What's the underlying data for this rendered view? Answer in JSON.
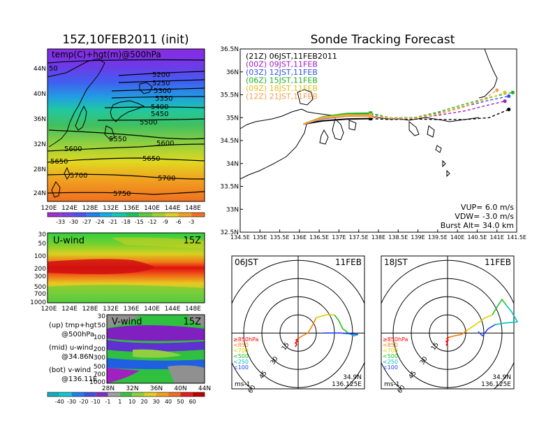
{
  "titles": {
    "left": "15Z,10FEB2011 (init)",
    "right": "Sonde Tracking Forecast"
  },
  "panel_500": {
    "label": "temp(C)+hgt(m)@500hPa",
    "lat_ticks": [
      "44N",
      "40N",
      "36N",
      "32N",
      "28N",
      "24N"
    ],
    "lon_ticks": [
      "120E",
      "124E",
      "128E",
      "132E",
      "136E",
      "140E",
      "144E",
      "148E"
    ],
    "contour_labels": [
      "50",
      "5200",
      "5250",
      "5300",
      "5350",
      "5400",
      "5450",
      "5500",
      "5550",
      "5600",
      "5600",
      "5650",
      "5650",
      "5700",
      "5700",
      "5750"
    ],
    "colorbar": [
      "-33",
      "-30",
      "-27",
      "-24",
      "-21",
      "-18",
      "-15",
      "-12",
      "-9",
      "-6",
      "-3"
    ]
  },
  "panel_u": {
    "title": "U-wind",
    "time": "15Z",
    "p_ticks": [
      "30",
      "50",
      "100",
      "200",
      "300",
      "500",
      "700",
      "1000"
    ],
    "lon_ticks": [
      "120E",
      "124E",
      "128E",
      "132E",
      "136E",
      "140E",
      "144E",
      "148E"
    ]
  },
  "panel_v": {
    "title": "V-wind",
    "time": "15Z",
    "p_ticks": [
      "30",
      "50",
      "100",
      "200",
      "300",
      "500",
      "700",
      "1000"
    ],
    "lat_ticks": [
      "28N",
      "32N",
      "36N",
      "40N",
      "44N"
    ],
    "colorbar": [
      "-40",
      "-30",
      "-20",
      "-10",
      "-1",
      "1",
      "10",
      "20",
      "30",
      "40",
      "50",
      "60"
    ]
  },
  "legend_text": {
    "up_1": "(up) tmp+hgt",
    "up_2": "@500hPa",
    "mid_1": "(mid) u-wind",
    "mid_2": "@34.86N",
    "bot_1": "(bot) v-wind",
    "bot_2": "@136.11E"
  },
  "track_map": {
    "lat_ticks": [
      "36.5N",
      "36N",
      "35.5N",
      "35N",
      "34.5N",
      "34N",
      "33.5N",
      "33N",
      "32.5N"
    ],
    "lon_ticks": [
      "134.5E",
      "135E",
      "135.5E",
      "136E",
      "136.5E",
      "137E",
      "137.5E",
      "138E",
      "138.5E",
      "139E",
      "139.5E",
      "140E",
      "140.5E",
      "141E",
      "141.5E"
    ],
    "legend": [
      {
        "label": "(21Z)  06JST,11FEB2011",
        "color": "#000000"
      },
      {
        "label": "(00Z)  09JST,11FEB",
        "color": "#a020c0"
      },
      {
        "label": "(03Z)  12JST,11FEB",
        "color": "#3050f0"
      },
      {
        "label": "(06Z)  15JST,11FEB",
        "color": "#20b020"
      },
      {
        "label": "(09Z)  18JST,11FEB",
        "color": "#e0c020"
      },
      {
        "label": "(12Z)  21JST,11FEB",
        "color": "#f0a050"
      }
    ],
    "params": {
      "vup": "VUP=  6.0  m/s",
      "vdw": "VDW= -3.0  m/s",
      "burst": "Burst Alt=  34.0  km"
    }
  },
  "hodo_left": {
    "time": "06JST",
    "date": "11FEB",
    "ring_labels": [
      "15",
      "30",
      "45",
      "60"
    ],
    "unit": "ms-1",
    "lat": "34.9N",
    "lon": "136.125E",
    "levels": [
      {
        "label": "≥850hPa",
        "color": "#ff0000"
      },
      {
        "label": "<850",
        "color": "#ff8000"
      },
      {
        "label": "<700",
        "color": "#e0d000"
      },
      {
        "label": "<500",
        "color": "#20c020"
      },
      {
        "label": "<250",
        "color": "#00c0c0"
      },
      {
        "label": "<100",
        "color": "#2040ff"
      }
    ]
  },
  "hodo_right": {
    "time": "18JST",
    "date": "11FEB",
    "ring_labels": [
      "15",
      "30",
      "45",
      "60"
    ],
    "unit": "ms-1",
    "lat": "34.9N",
    "lon": "136.125E",
    "levels": [
      {
        "label": "≥850hPa",
        "color": "#ff0000"
      },
      {
        "label": "<850",
        "color": "#ff8000"
      },
      {
        "label": "<700",
        "color": "#e0d000"
      },
      {
        "label": "<500",
        "color": "#20c020"
      },
      {
        "label": "<250",
        "color": "#00c0c0"
      },
      {
        "label": "<100",
        "color": "#2040ff"
      }
    ]
  },
  "chart_data": [
    {
      "type": "line",
      "xlim": [
        134.5,
        141.5
      ],
      "ylim": [
        32.5,
        36.5
      ],
      "series": [
        {
          "name": "(21Z)  06JST,11FEB2011",
          "x": [
            136.1,
            136.6,
            137.2,
            137.8,
            138.3,
            138.9,
            139.5,
            140.2,
            140.8,
            141.3
          ],
          "y": [
            34.86,
            34.93,
            34.97,
            34.98,
            34.96,
            34.97,
            34.96,
            34.96,
            35.0,
            35.18
          ]
        },
        {
          "name": "(00Z)  09JST,11FEB",
          "x": [
            136.1,
            136.6,
            137.2,
            137.8,
            138.3,
            138.9,
            139.5,
            140.2,
            140.8,
            141.2
          ],
          "y": [
            34.86,
            34.98,
            35.03,
            35.04,
            35.0,
            35.0,
            35.05,
            35.15,
            35.28,
            35.36
          ]
        },
        {
          "name": "(03Z)  12JST,11FEB",
          "x": [
            136.1,
            136.6,
            137.2,
            137.8,
            138.3,
            138.9,
            139.5,
            140.2,
            140.8,
            141.3
          ],
          "y": [
            34.86,
            35.0,
            35.07,
            35.08,
            35.0,
            35.0,
            35.1,
            35.25,
            35.38,
            35.47
          ]
        },
        {
          "name": "(06Z)  15JST,11FEB",
          "x": [
            136.1,
            136.6,
            137.2,
            137.8,
            138.3,
            138.9,
            139.5,
            140.2,
            140.8,
            141.4
          ],
          "y": [
            34.86,
            35.02,
            35.09,
            35.1,
            35.0,
            35.0,
            35.12,
            35.3,
            35.44,
            35.55
          ]
        },
        {
          "name": "(09Z)  18JST,11FEB",
          "x": [
            136.1,
            136.6,
            137.2,
            137.8,
            138.3,
            138.9,
            139.5,
            140.2,
            140.8,
            141.2
          ],
          "y": [
            34.86,
            35.01,
            35.06,
            35.06,
            35.0,
            34.99,
            35.09,
            35.27,
            35.42,
            35.55
          ]
        },
        {
          "name": "(12Z)  21JST,11FEB",
          "x": [
            136.1,
            136.6,
            137.2,
            137.8,
            138.3,
            138.9,
            139.5,
            140.2,
            140.7,
            141.0
          ],
          "y": [
            34.86,
            34.99,
            35.03,
            35.03,
            34.98,
            34.98,
            35.07,
            35.24,
            35.42,
            35.6
          ]
        }
      ]
    }
  ]
}
